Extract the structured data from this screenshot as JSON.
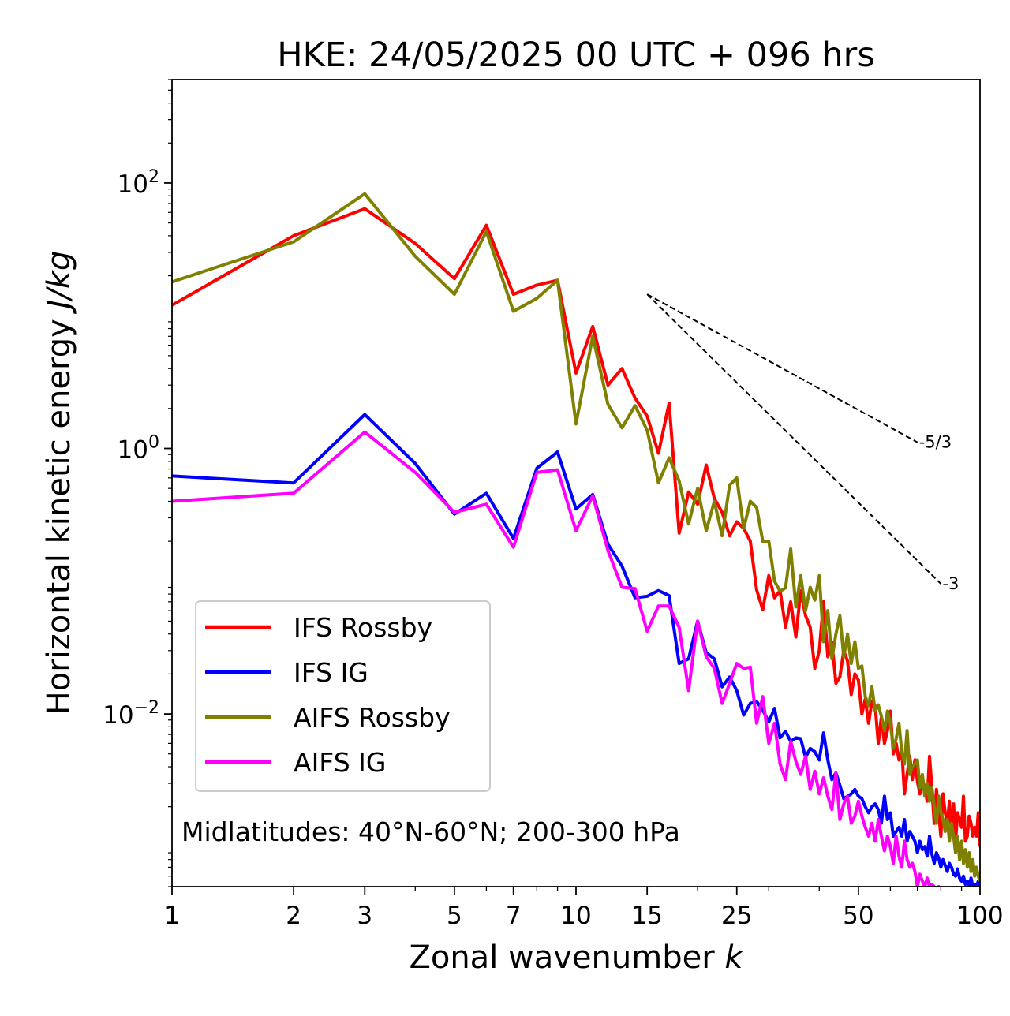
{
  "chart_data": {
    "type": "line",
    "title": "HKE: 24/05/2025 00 UTC + 096 hrs",
    "xlabel": "Zonal wavenumber k",
    "ylabel": "Horizontal kinetic energy J/kg",
    "xscale": "log",
    "yscale": "log",
    "xlim": [
      1,
      100
    ],
    "ylim": [
      0.0005,
      600
    ],
    "xticks": [
      1,
      2,
      3,
      5,
      7,
      10,
      15,
      25,
      50,
      100
    ],
    "xtick_labels": [
      "1",
      "2",
      "3",
      "5",
      "7",
      "10",
      "15",
      "25",
      "50",
      "100"
    ],
    "yticks": [
      0.01,
      1,
      100
    ],
    "ytick_labels": [
      {
        "base": "10",
        "exp": "−2"
      },
      {
        "base": "10",
        "exp": "0"
      },
      {
        "base": "10",
        "exp": "2"
      }
    ],
    "annotation": "Midlatitudes: 40°N-60°N; 200-300 hPa",
    "legend_position": "lower-left",
    "grid": false,
    "reference_lines": [
      {
        "label": "-5/3",
        "slope": -1.6667,
        "x": [
          15,
          70
        ],
        "y0": 14.5,
        "style": "dashed"
      },
      {
        "label": "-3",
        "slope": -3,
        "x": [
          15,
          80
        ],
        "y0": 14.5,
        "style": "dashed"
      }
    ],
    "x": [
      1,
      2,
      3,
      4,
      5,
      6,
      7,
      8,
      9,
      10,
      11,
      12,
      13,
      14,
      15,
      16,
      17,
      18,
      19,
      20,
      21,
      22,
      23,
      24,
      25,
      26,
      27,
      28,
      29,
      30,
      31,
      32,
      33,
      34,
      35,
      36,
      37,
      38,
      39,
      40,
      41,
      42,
      43,
      44,
      45,
      46,
      47,
      48,
      49,
      50,
      51,
      52,
      53,
      54,
      55,
      56,
      57,
      58,
      59,
      60,
      61,
      62,
      63,
      64,
      65,
      66,
      67,
      68,
      69,
      70,
      71,
      72,
      73,
      74,
      75,
      76,
      77,
      78,
      79,
      80,
      81,
      82,
      83,
      84,
      85,
      86,
      87,
      88,
      89,
      90,
      91,
      92,
      93,
      94,
      95,
      96,
      97,
      98,
      99,
      100
    ],
    "series": [
      {
        "name": "IFS Rossby",
        "color": "#ff0000",
        "values": [
          12,
          40,
          64,
          35,
          19,
          48,
          14.5,
          17,
          18.5,
          3.7,
          8.3,
          3.0,
          4.0,
          2.4,
          1.75,
          0.92,
          2.2,
          0.23,
          0.47,
          0.38,
          0.75,
          0.42,
          0.33,
          0.22,
          0.28,
          0.25,
          0.2,
          0.086,
          0.061,
          0.11,
          0.075,
          0.085,
          0.045,
          0.07,
          0.038,
          0.085,
          0.055,
          0.045,
          0.022,
          0.03,
          0.07,
          0.027,
          0.035,
          0.017,
          0.019,
          0.03,
          0.025,
          0.014,
          0.02,
          0.018,
          0.01,
          0.013,
          0.0085,
          0.0125,
          0.0115,
          0.006,
          0.0095,
          0.006,
          0.0075,
          0.0105,
          0.005,
          0.006,
          0.0045,
          0.0055,
          0.0025,
          0.0035,
          0.0048,
          0.0032,
          0.0045,
          0.0031,
          0.0025,
          0.0032,
          0.0028,
          0.0022,
          0.0048,
          0.0028,
          0.0015,
          0.0027,
          0.0018,
          0.0012,
          0.0025,
          0.0018,
          0.0015,
          0.0022,
          0.0013,
          0.0021,
          0.0011,
          0.0018,
          0.0016,
          0.0014,
          0.0024,
          0.0011,
          0.0012,
          0.0017,
          0.0015,
          0.0012,
          0.0014,
          0.0012,
          0.0018,
          0.001
        ]
      },
      {
        "name": "IFS IG",
        "color": "#0000ff",
        "values": [
          0.62,
          0.55,
          1.8,
          0.77,
          0.32,
          0.46,
          0.21,
          0.71,
          0.94,
          0.35,
          0.45,
          0.19,
          0.13,
          0.075,
          0.077,
          0.085,
          0.078,
          0.024,
          0.026,
          0.05,
          0.029,
          0.026,
          0.016,
          0.019,
          0.015,
          0.0098,
          0.012,
          0.0124,
          0.0107,
          0.0087,
          0.011,
          0.0066,
          0.0074,
          0.0062,
          0.0066,
          0.0065,
          0.0047,
          0.0055,
          0.0052,
          0.0045,
          0.0072,
          0.0045,
          0.0032,
          0.0036,
          0.0029,
          0.0023,
          0.0024,
          0.0025,
          0.0027,
          0.0024,
          0.0023,
          0.002,
          0.0018,
          0.002,
          0.0021,
          0.0019,
          0.0015,
          0.0024,
          0.0016,
          0.0018,
          0.0012,
          0.0013,
          0.0014,
          0.0012,
          0.0016,
          0.0011,
          0.0013,
          0.0012,
          0.0011,
          0.0009,
          0.0011,
          0.00095,
          0.001,
          0.00085,
          0.0012,
          0.00088,
          0.00075,
          0.0009,
          0.00082,
          0.0007,
          0.0008,
          0.00072,
          0.00065,
          0.00075,
          0.0007,
          0.00062,
          0.0006,
          0.00068,
          0.00058,
          0.00055,
          0.0006,
          0.00052,
          0.00055,
          0.0005,
          0.00058,
          0.0005,
          0.00052,
          0.0005,
          0.00055,
          0.0005
        ]
      },
      {
        "name": "AIFS Rossby",
        "color": "#808000",
        "values": [
          18,
          36,
          83,
          28,
          14.5,
          43,
          10.8,
          13.5,
          18.5,
          1.53,
          7.0,
          2.15,
          1.43,
          2.1,
          1.37,
          0.55,
          0.85,
          0.57,
          0.27,
          0.5,
          0.24,
          0.4,
          0.22,
          0.53,
          0.6,
          0.25,
          0.4,
          0.36,
          0.2,
          0.2,
          0.1,
          0.084,
          0.089,
          0.175,
          0.064,
          0.11,
          0.06,
          0.09,
          0.072,
          0.11,
          0.035,
          0.06,
          0.026,
          0.04,
          0.055,
          0.027,
          0.04,
          0.024,
          0.035,
          0.022,
          0.023,
          0.0135,
          0.0115,
          0.016,
          0.0105,
          0.0117,
          0.0096,
          0.0075,
          0.0105,
          0.0085,
          0.0055,
          0.0065,
          0.0085,
          0.0052,
          0.0042,
          0.0075,
          0.0035,
          0.004,
          0.0042,
          0.0045,
          0.0028,
          0.0035,
          0.0024,
          0.003,
          0.0022,
          0.0028,
          0.002,
          0.0015,
          0.0024,
          0.0018,
          0.0016,
          0.0013,
          0.0016,
          0.0011,
          0.0015,
          0.0012,
          0.0009,
          0.0012,
          0.0008,
          0.0011,
          0.00075,
          0.00095,
          0.0007,
          0.0009,
          0.00065,
          0.0008,
          0.0006,
          0.0007,
          0.0006,
          0.00055
        ]
      },
      {
        "name": "AIFS IG",
        "color": "#ff00ff",
        "values": [
          0.4,
          0.46,
          1.33,
          0.66,
          0.33,
          0.38,
          0.18,
          0.66,
          0.69,
          0.24,
          0.44,
          0.17,
          0.09,
          0.088,
          0.042,
          0.065,
          0.065,
          0.045,
          0.015,
          0.05,
          0.027,
          0.022,
          0.012,
          0.017,
          0.024,
          0.022,
          0.0225,
          0.0085,
          0.0135,
          0.006,
          0.0085,
          0.0042,
          0.0032,
          0.0062,
          0.0044,
          0.0035,
          0.0048,
          0.0027,
          0.0037,
          0.0025,
          0.0033,
          0.0024,
          0.0019,
          0.0036,
          0.0016,
          0.0021,
          0.0024,
          0.0015,
          0.0017,
          0.0022,
          0.0017,
          0.0014,
          0.0012,
          0.0015,
          0.0011,
          0.0016,
          0.0012,
          0.00093,
          0.0012,
          0.001,
          0.00075,
          0.0012,
          0.00085,
          0.0007,
          0.0011,
          0.0008,
          0.0007,
          0.00075,
          0.00065,
          0.0005,
          0.00062,
          0.00055,
          0.0005,
          0.00058,
          0.0005,
          0.00052,
          0.0005,
          0.00048,
          0.0005,
          0.00047,
          0.00049,
          0.00046,
          0.00048,
          0.00046,
          0.00047,
          0.00045,
          0.00046,
          0.00045,
          0.00046,
          0.00045,
          0.00045,
          0.00044,
          0.00045,
          0.00044,
          0.00045,
          0.00044,
          0.00044,
          0.00044,
          0.00044,
          0.00044
        ]
      }
    ]
  }
}
